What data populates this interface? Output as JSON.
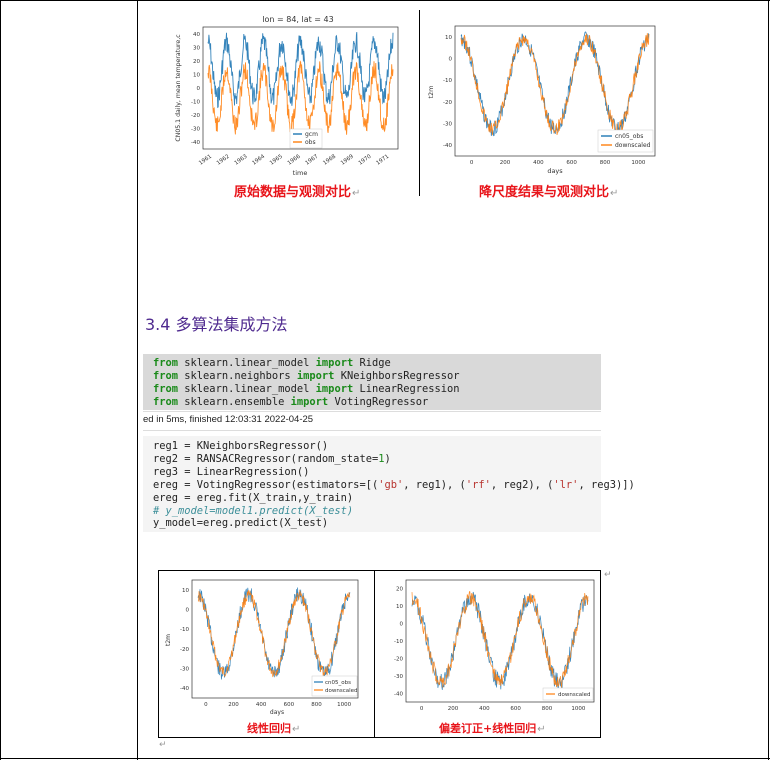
{
  "top_figures": {
    "left": {
      "title": "lon = 84, lat = 43",
      "ylabel": "CN05.1 daily, mean temperature,c",
      "xlabel": "time",
      "legend": [
        "gcm",
        "obs"
      ],
      "yticks": [
        "40",
        "30",
        "20",
        "10",
        "0",
        "-10",
        "-20",
        "-30",
        "-40"
      ],
      "xticks": [
        "1961",
        "1962",
        "1963",
        "1964",
        "1965",
        "1966",
        "1967",
        "1968",
        "1969",
        "1970",
        "1971"
      ],
      "caption": "原始数据与观测对比"
    },
    "right": {
      "ylabel": "t2m",
      "xlabel": "days",
      "legend": [
        "cn05_obs",
        "downscaled"
      ],
      "yticks": [
        "10",
        "0",
        "-10",
        "-20",
        "-30",
        "-40"
      ],
      "xticks": [
        "0",
        "200",
        "400",
        "600",
        "800",
        "1000"
      ],
      "caption": "降尺度结果与观测对比"
    }
  },
  "section_heading": "3.4 多算法集成方法",
  "status_line": "ed in 5ms, finished 12:03:31 2022-04-25",
  "bottom_figures": {
    "left": {
      "ylabel": "t2m",
      "xlabel": "days",
      "legend": [
        "cn05_obs",
        "downscaled"
      ],
      "yticks": [
        "10",
        "0",
        "-10",
        "-20",
        "-30",
        "-40"
      ],
      "xticks": [
        "0",
        "200",
        "400",
        "600",
        "800",
        "1000"
      ],
      "caption": "线性回归"
    },
    "right": {
      "legend": [
        "downscaled"
      ],
      "yticks": [
        "20",
        "10",
        "0",
        "-10",
        "-20",
        "-30",
        "-40"
      ],
      "xticks": [
        "0",
        "200",
        "400",
        "600",
        "800",
        "1000"
      ],
      "caption": "偏差订正+线性回归"
    }
  },
  "colors": {
    "blue": "#1f77b4",
    "orange": "#ff7f0e",
    "caption": "#e8141a",
    "heading": "#4f2a8f"
  }
}
